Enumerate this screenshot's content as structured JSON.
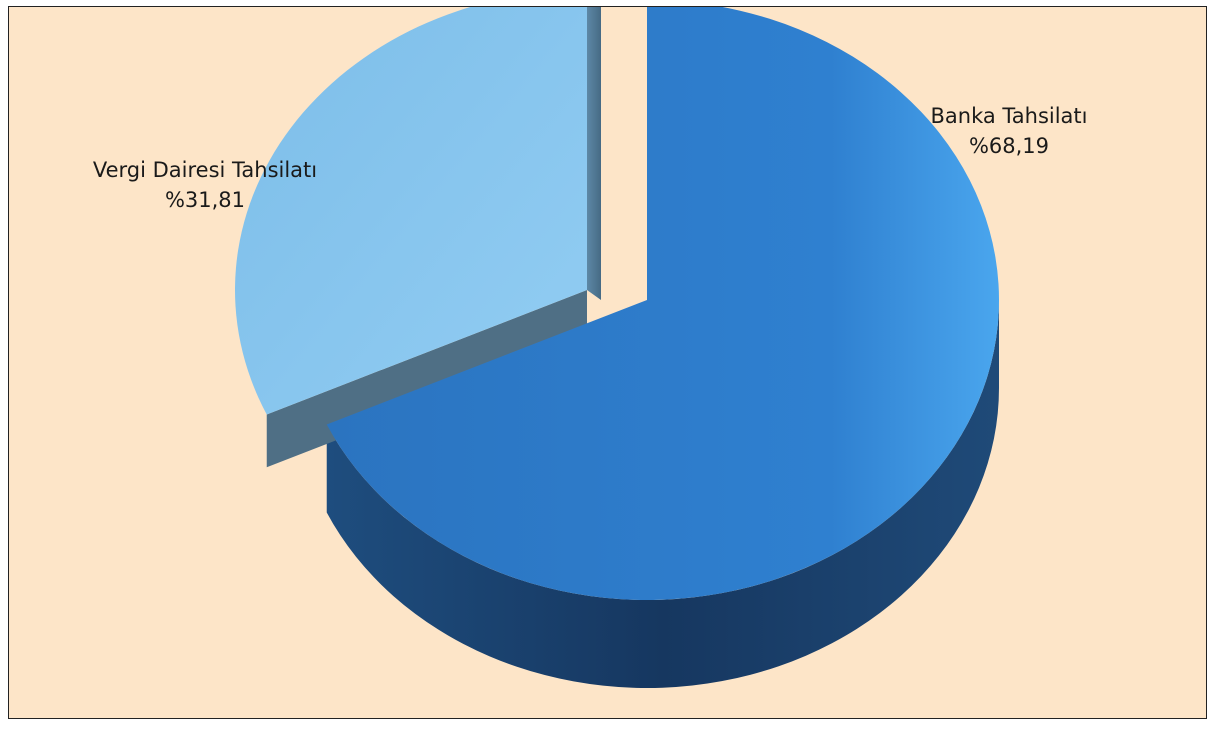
{
  "chart_data": {
    "type": "pie",
    "style": "3d-exploded",
    "categories": [
      "Vergi Dairesi Tahsilatı",
      "Banka Tahsilatı"
    ],
    "values": [
      31.81,
      68.19
    ],
    "data_labels": [
      "%31,81",
      "%68,19"
    ],
    "legend": "none",
    "colors": {
      "background": "#fde5c8",
      "series": [
        "#86c4ee",
        "#2f7fce"
      ],
      "series_side": [
        "#4f6f85",
        "#173a63"
      ]
    }
  }
}
